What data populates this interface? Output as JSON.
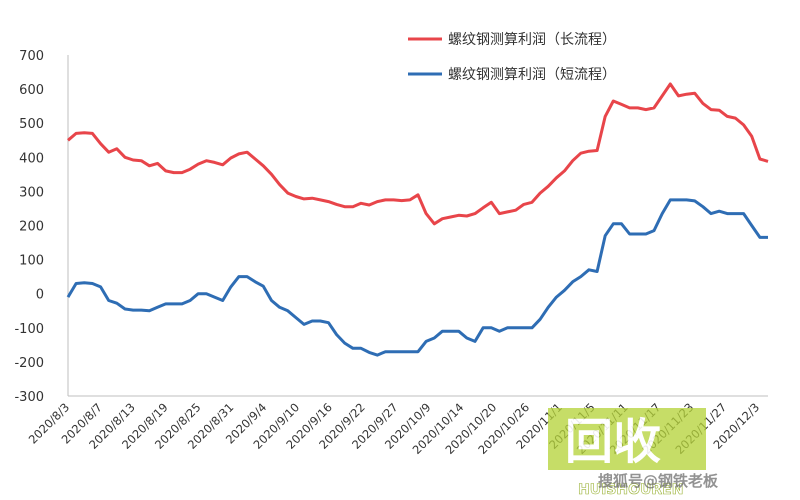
{
  "chart_data": {
    "type": "line",
    "title": "",
    "xlabel": "",
    "ylabel": "",
    "ylim": [
      -300,
      700
    ],
    "yticks": [
      700,
      600,
      500,
      400,
      300,
      200,
      100,
      0,
      -100,
      -200,
      -300
    ],
    "xtick_labels": [
      "2020/8/3",
      "2020/8/7",
      "2020/8/13",
      "2020/8/19",
      "2020/8/25",
      "2020/8/31",
      "2020/9/4",
      "2020/9/10",
      "2020/9/16",
      "2020/9/22",
      "2020/9/27",
      "2020/10/9",
      "2020/10/14",
      "2020/10/20",
      "2020/10/26",
      "2020/11/1",
      "2020/11/5",
      "2020/11/11",
      "2020/11/17",
      "2020/11/23",
      "2020/11/27",
      "2020/12/3"
    ],
    "legend_position": "top-right",
    "grid": false,
    "series": [
      {
        "name": "螺纹钢测算利润（长流程）",
        "color": "#e8454a",
        "values": [
          450,
          470,
          472,
          470,
          440,
          415,
          425,
          400,
          392,
          390,
          375,
          382,
          360,
          355,
          355,
          365,
          380,
          390,
          385,
          378,
          398,
          410,
          415,
          395,
          375,
          350,
          320,
          295,
          285,
          278,
          280,
          275,
          270,
          262,
          255,
          255,
          265,
          260,
          270,
          275,
          275,
          273,
          275,
          290,
          235,
          205,
          220,
          225,
          230,
          228,
          235,
          252,
          268,
          235,
          240,
          245,
          262,
          268,
          295,
          315,
          340,
          360,
          390,
          412,
          418,
          420,
          520,
          565,
          555,
          545,
          545,
          540,
          545,
          580,
          615,
          580,
          585,
          588,
          558,
          540,
          538,
          520,
          515,
          495,
          462,
          395,
          388
        ]
      },
      {
        "name": "螺纹钢测算利润（短流程）",
        "color": "#2e6db4",
        "values": [
          -10,
          30,
          32,
          30,
          20,
          -20,
          -28,
          -45,
          -48,
          -48,
          -50,
          -40,
          -30,
          -30,
          -30,
          -20,
          0,
          0,
          -10,
          -20,
          20,
          50,
          50,
          35,
          22,
          -20,
          -40,
          -50,
          -70,
          -90,
          -80,
          -80,
          -85,
          -120,
          -145,
          -160,
          -160,
          -172,
          -180,
          -170,
          -170,
          -170,
          -170,
          -170,
          -140,
          -130,
          -110,
          -110,
          -110,
          -130,
          -140,
          -100,
          -100,
          -110,
          -100,
          -100,
          -100,
          -100,
          -75,
          -40,
          -10,
          10,
          35,
          50,
          70,
          65,
          170,
          205,
          205,
          175,
          175,
          175,
          185,
          235,
          275,
          275,
          275,
          272,
          255,
          235,
          242,
          235,
          235,
          235,
          200,
          165,
          165
        ]
      }
    ]
  },
  "watermark": {
    "big_text": "回收",
    "sub_text": "HUISHOUREN",
    "overlay_text": "搜狐号@钢铁老板"
  }
}
